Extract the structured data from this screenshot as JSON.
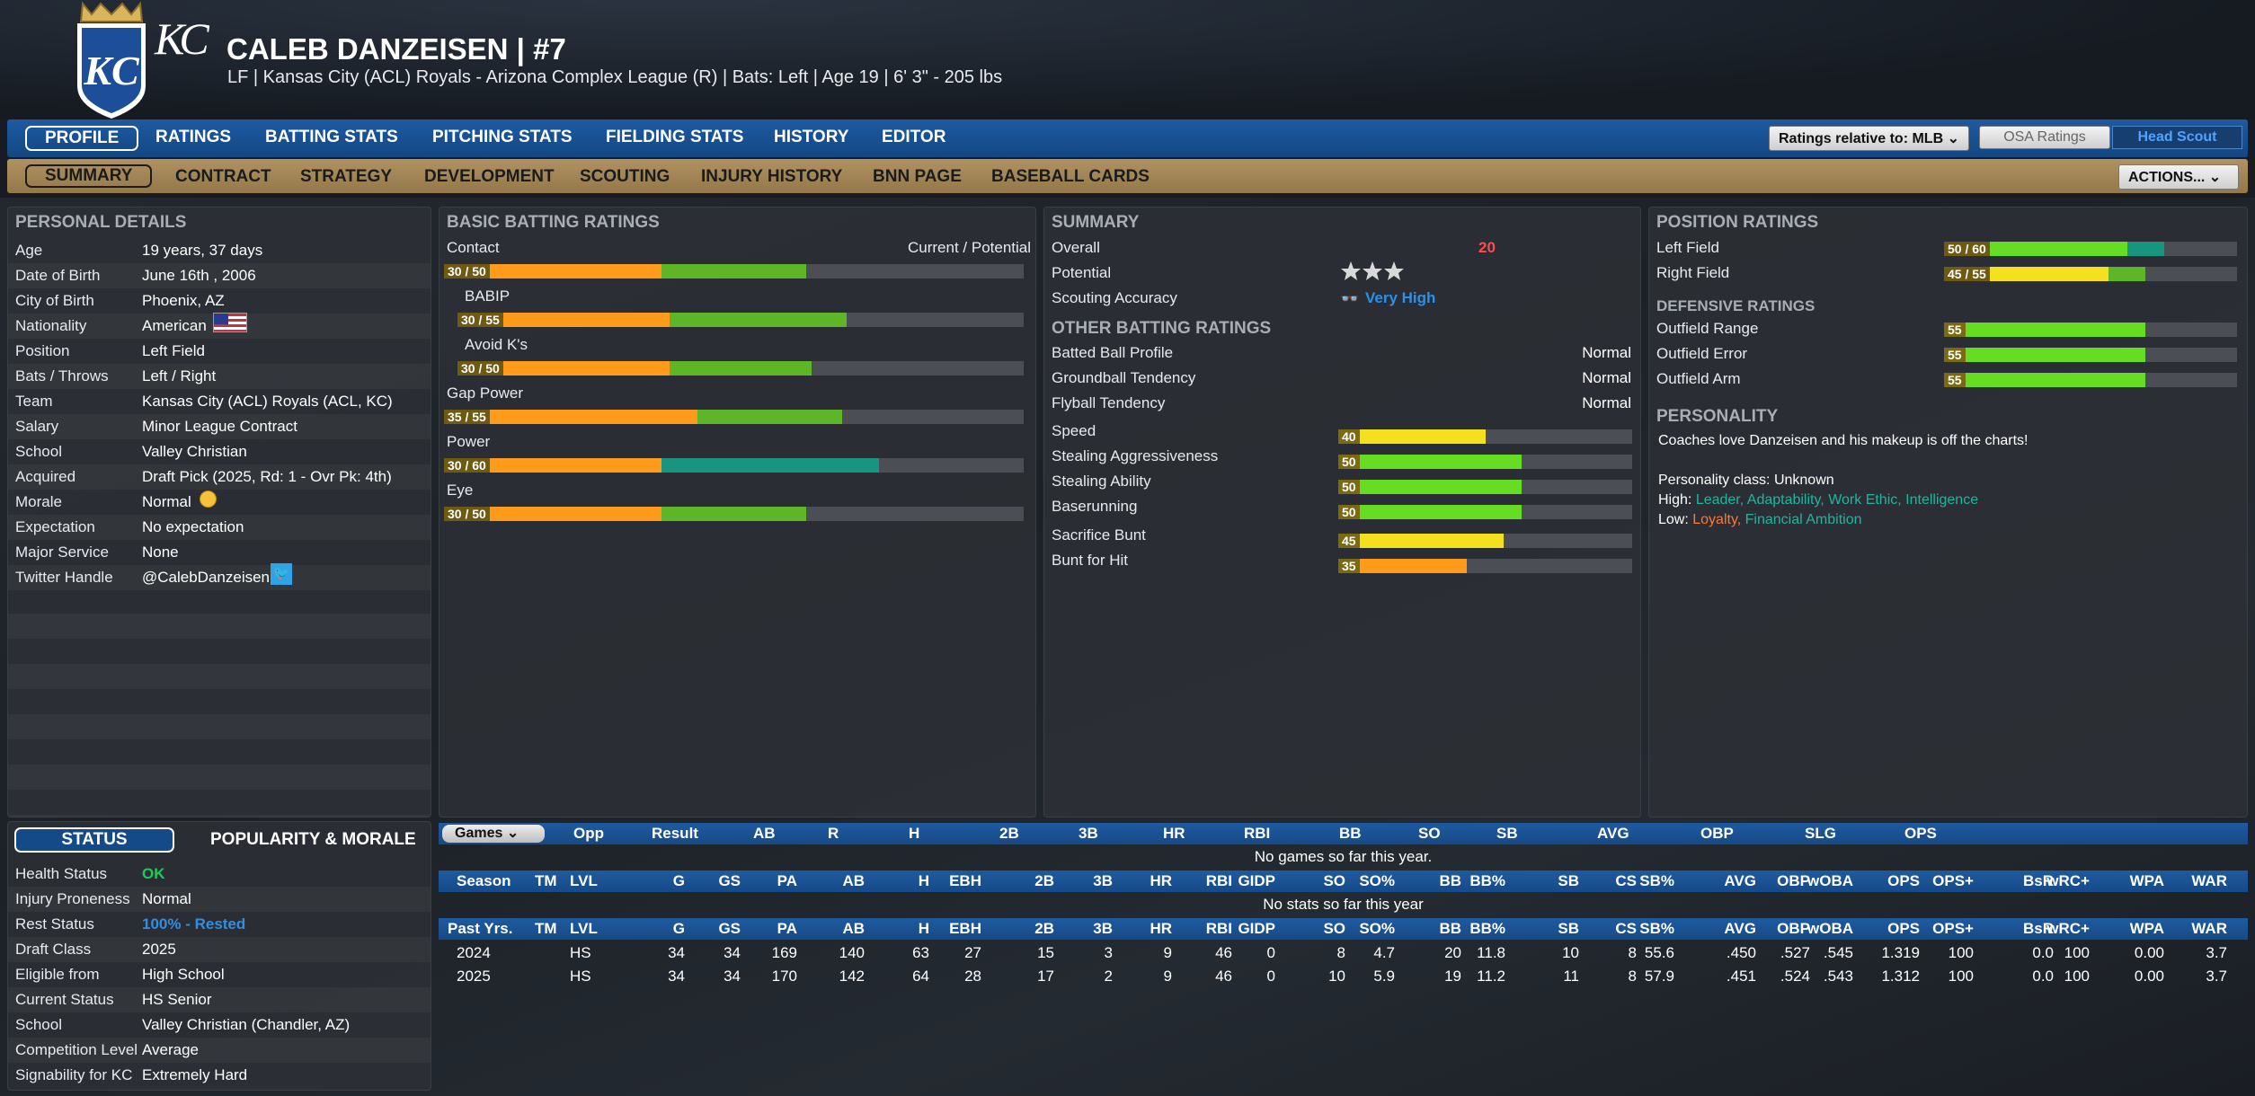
{
  "header": {
    "team_mark": "KC",
    "player_name": "CALEB DANZEISEN  |  #7",
    "subtitle": "LF | Kansas City (ACL) Royals - Arizona Complex League (R)  |  Bats: Left  |  Age 19  |  6' 3\" - 205 lbs"
  },
  "colors": {
    "nav_blue": "#1e5aa2",
    "nav_gold": "#b09262",
    "bar_orange": "#ff9a1a",
    "bar_green": "#5db527",
    "bar_teal": "#17957e",
    "bar_yellow": "#f2e11c",
    "bar_lime": "#66dd22"
  },
  "nav": {
    "tabs": [
      "PROFILE",
      "RATINGS",
      "BATTING STATS",
      "PITCHING STATS",
      "FIELDING STATS",
      "HISTORY",
      "EDITOR"
    ],
    "ratings_relative": "Ratings relative to: MLB",
    "osa_ratings": "OSA Ratings",
    "head_scout": "Head Scout"
  },
  "subnav": {
    "tabs": [
      "SUMMARY",
      "CONTRACT",
      "STRATEGY",
      "DEVELOPMENT",
      "SCOUTING",
      "INJURY HISTORY",
      "BNN PAGE",
      "BASEBALL CARDS"
    ],
    "actions": "ACTIONS..."
  },
  "personal": {
    "title": "PERSONAL DETAILS",
    "rows": [
      {
        "label": "Age",
        "value": "19 years, 37 days"
      },
      {
        "label": "Date of Birth",
        "value": "June 16th , 2006"
      },
      {
        "label": "City of Birth",
        "value": "Phoenix, AZ"
      },
      {
        "label": "Nationality",
        "value": "American"
      },
      {
        "label": "Position",
        "value": "Left Field"
      },
      {
        "label": "Bats / Throws",
        "value": "Left / Right"
      },
      {
        "label": "Team",
        "value": "Kansas City (ACL) Royals (ACL, KC)"
      },
      {
        "label": "Salary",
        "value": "Minor League Contract"
      },
      {
        "label": "School",
        "value": "Valley Christian"
      },
      {
        "label": "Acquired",
        "value": "Draft Pick (2025, Rd: 1 - Ovr Pk: 4th)"
      },
      {
        "label": "Morale",
        "value": "Normal"
      },
      {
        "label": "Expectation",
        "value": "No expectation"
      },
      {
        "label": "Major Service",
        "value": "None"
      },
      {
        "label": "Twitter Handle",
        "value": "@CalebDanzeisen"
      }
    ]
  },
  "status": {
    "tab_status": "STATUS",
    "tab_popularity": "POPULARITY & MORALE",
    "rows": [
      {
        "label": "Health Status",
        "value": "OK"
      },
      {
        "label": "Injury Proneness",
        "value": "Normal"
      },
      {
        "label": "Rest Status",
        "value": "100% - Rested"
      },
      {
        "label": "Draft Class",
        "value": "2025"
      },
      {
        "label": "Eligible from",
        "value": "High School"
      },
      {
        "label": "Current Status",
        "value": "HS Senior"
      },
      {
        "label": "School",
        "value": "Valley Christian (Chandler, AZ)"
      },
      {
        "label": "Competition Level",
        "value": "Average"
      },
      {
        "label": "Signability for KC",
        "value": "Extremely Hard"
      }
    ]
  },
  "batting": {
    "title": "BASIC BATTING RATINGS",
    "cur_pot": "Current / Potential",
    "rows": [
      {
        "label": "Contact",
        "text": "30 / 50",
        "current": 30,
        "potential": 50,
        "color": "green"
      },
      {
        "label": "BABIP",
        "text": "30 / 55",
        "current": 30,
        "potential": 55,
        "color": "green"
      },
      {
        "label": "Avoid K's",
        "text": "30 / 50",
        "current": 30,
        "potential": 50,
        "color": "green"
      },
      {
        "label": "Gap Power",
        "text": "35 / 55",
        "current": 35,
        "potential": 55,
        "color": "green"
      },
      {
        "label": "Power",
        "text": "30 / 60",
        "current": 30,
        "potential": 60,
        "color": "teal"
      },
      {
        "label": "Eye",
        "text": "30 / 50",
        "current": 30,
        "potential": 50,
        "color": "green"
      }
    ]
  },
  "summary": {
    "title": "SUMMARY",
    "overall_label": "Overall",
    "overall": "20",
    "potential_label": "Potential",
    "potential_stars": 3,
    "scouting_label": "Scouting Accuracy",
    "scouting": "Very High",
    "other_title": "OTHER BATTING RATINGS",
    "other": [
      {
        "label": "Batted Ball Profile",
        "value": "Normal"
      },
      {
        "label": "Groundball Tendency",
        "value": "Normal"
      },
      {
        "label": "Flyball Tendency",
        "value": "Normal"
      }
    ],
    "running": [
      {
        "label": "Speed",
        "value": 40,
        "color": "yellow"
      },
      {
        "label": "Stealing Aggressiveness",
        "value": 50,
        "color": "lime"
      },
      {
        "label": "Stealing Ability",
        "value": 50,
        "color": "lime"
      },
      {
        "label": "Baserunning",
        "value": 50,
        "color": "lime"
      },
      {
        "label": "Sacrifice Bunt",
        "value": 45,
        "color": "yellow"
      },
      {
        "label": "Bunt for Hit",
        "value": 35,
        "color": "orange"
      }
    ]
  },
  "position": {
    "title": "POSITION RATINGS",
    "ratings": [
      {
        "label": "Left Field",
        "text": "50 / 60",
        "current": 50,
        "potential": 60,
        "color": "lime"
      },
      {
        "label": "Right Field",
        "text": "45 / 55",
        "current": 45,
        "potential": 55,
        "color": "yellow"
      }
    ],
    "def_title": "DEFENSIVE RATINGS",
    "defensive": [
      {
        "label": "Outfield Range",
        "value": 55
      },
      {
        "label": "Outfield Error",
        "value": 55
      },
      {
        "label": "Outfield Arm",
        "value": 55
      }
    ],
    "personality_title": "PERSONALITY",
    "personality_text": "Coaches love Danzeisen and his makeup is off the charts!",
    "personality_class": "Personality class: Unknown",
    "high_label": "High:",
    "high": [
      "Leader,",
      "Adaptability,",
      "Work Ethic,",
      "Intelligence"
    ],
    "low_label": "Low:",
    "low": [
      {
        "t": "Loyalty,",
        "c": "orange"
      },
      {
        "t": "Financial Ambition",
        "c": "teal"
      }
    ]
  },
  "stats": {
    "games_dropdown": "Games",
    "games_cols": [
      "Opp",
      "Result",
      "AB",
      "R",
      "H",
      "2B",
      "3B",
      "HR",
      "RBI",
      "BB",
      "SO",
      "SB",
      "AVG",
      "OBP",
      "SLG",
      "OPS"
    ],
    "no_games": "No games so far this year.",
    "season_cols": [
      "Season",
      "TM",
      "LVL",
      "G",
      "GS",
      "PA",
      "AB",
      "H",
      "EBH",
      "2B",
      "3B",
      "HR",
      "RBI",
      "GIDP",
      "SO",
      "SO%",
      "BB",
      "BB%",
      "SB",
      "CS",
      "SB%",
      "AVG",
      "OBP",
      "wOBA",
      "OPS",
      "OPS+",
      "BsR",
      "wRC+",
      "WPA",
      "WAR"
    ],
    "no_stats": "No stats so far this year",
    "past_cols": [
      "Past Yrs.",
      "TM",
      "LVL",
      "G",
      "GS",
      "PA",
      "AB",
      "H",
      "EBH",
      "2B",
      "3B",
      "HR",
      "RBI",
      "GIDP",
      "SO",
      "SO%",
      "BB",
      "BB%",
      "SB",
      "CS",
      "SB%",
      "AVG",
      "OBP",
      "wOBA",
      "OPS",
      "OPS+",
      "BsR",
      "wRC+",
      "WPA",
      "WAR"
    ],
    "past_rows": [
      [
        "2024",
        "",
        "HS",
        "34",
        "34",
        "169",
        "140",
        "63",
        "27",
        "15",
        "3",
        "9",
        "46",
        "0",
        "8",
        "4.7",
        "20",
        "11.8",
        "10",
        "8",
        "55.6",
        ".450",
        ".527",
        ".545",
        "1.319",
        "100",
        "0.0",
        "100",
        "0.00",
        "3.7"
      ],
      [
        "2025",
        "",
        "HS",
        "34",
        "34",
        "170",
        "142",
        "64",
        "28",
        "17",
        "2",
        "9",
        "46",
        "0",
        "10",
        "5.9",
        "19",
        "11.2",
        "11",
        "8",
        "57.9",
        ".451",
        ".524",
        ".543",
        "1.312",
        "100",
        "0.0",
        "100",
        "0.00",
        "3.7"
      ]
    ]
  }
}
